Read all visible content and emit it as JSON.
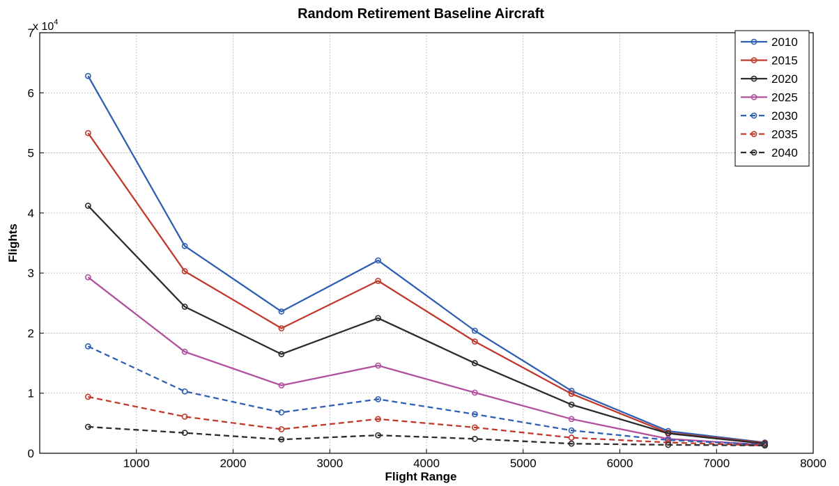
{
  "chart_data": {
    "type": "line",
    "title": "Random Retirement Baseline Aircraft",
    "xlabel": "Flight Range",
    "ylabel": "Flights",
    "y_exponent_label": "x 10",
    "y_exponent_power": "4",
    "xlim": [
      0,
      8000
    ],
    "ylim": [
      0,
      70000
    ],
    "x_ticks": [
      1000,
      2000,
      3000,
      4000,
      5000,
      6000,
      7000,
      8000
    ],
    "x_tick_labels": [
      "1000",
      "2000",
      "3000",
      "4000",
      "5000",
      "6000",
      "7000",
      "8000"
    ],
    "y_ticks": [
      0,
      10000,
      20000,
      30000,
      40000,
      50000,
      60000,
      70000
    ],
    "y_tick_labels": [
      "0",
      "1",
      "2",
      "3",
      "4",
      "5",
      "6",
      "7"
    ],
    "grid": true,
    "legend_position": "top-right",
    "x": [
      500,
      1500,
      2500,
      3500,
      4500,
      5500,
      6500,
      7500
    ],
    "series": [
      {
        "name": "2010",
        "color": "#2f5fb3",
        "dashed": false,
        "values": [
          62800,
          34500,
          23600,
          32100,
          20400,
          10400,
          3700,
          1800
        ]
      },
      {
        "name": "2015",
        "color": "#c0392b",
        "dashed": false,
        "values": [
          53300,
          30300,
          20800,
          28700,
          18600,
          9900,
          3400,
          1700
        ]
      },
      {
        "name": "2020",
        "color": "#2b2b2b",
        "dashed": false,
        "values": [
          41200,
          24400,
          16500,
          22500,
          15000,
          8100,
          3300,
          1600
        ]
      },
      {
        "name": "2025",
        "color": "#b0509e",
        "dashed": false,
        "values": [
          29300,
          16900,
          11300,
          14600,
          10100,
          5700,
          2400,
          1400
        ]
      },
      {
        "name": "2030",
        "color": "#2f5fb3",
        "dashed": true,
        "values": [
          17800,
          10300,
          6800,
          9000,
          6500,
          3800,
          2200,
          1400
        ]
      },
      {
        "name": "2035",
        "color": "#c0392b",
        "dashed": true,
        "values": [
          9400,
          6100,
          4000,
          5700,
          4300,
          2600,
          1800,
          1300
        ]
      },
      {
        "name": "2040",
        "color": "#2b2b2b",
        "dashed": true,
        "values": [
          4400,
          3400,
          2300,
          3000,
          2400,
          1600,
          1400,
          1300
        ]
      }
    ]
  }
}
